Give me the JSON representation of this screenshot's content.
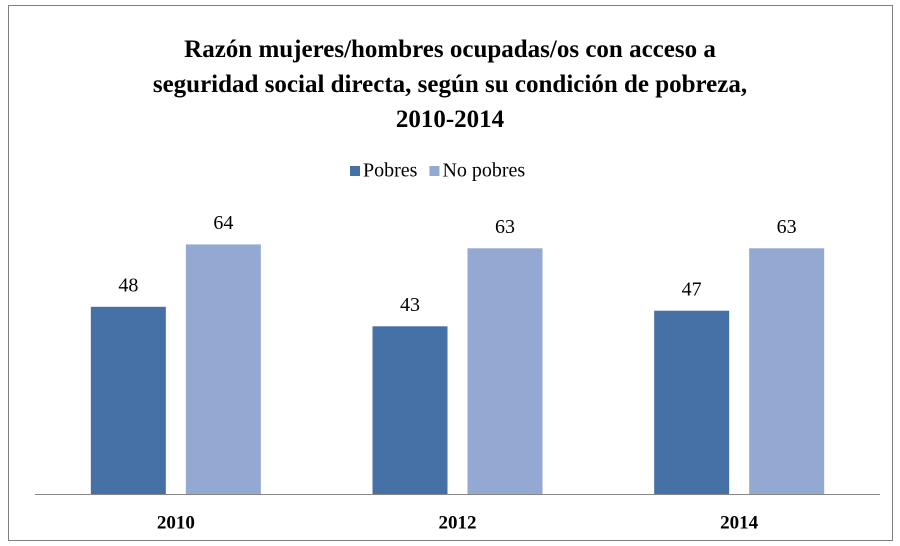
{
  "chart_data": {
    "type": "bar",
    "title": "Razón mujeres/hombres ocupadas/os con acceso a seguridad social directa, según su condición de pobreza, 2010-2014",
    "categories": [
      "2010",
      "2012",
      "2014"
    ],
    "series": [
      {
        "name": "Pobres",
        "color": "#4671a6",
        "values": [
          48,
          43,
          47
        ]
      },
      {
        "name": "No pobres",
        "color": "#93a9d1",
        "values": [
          64,
          63,
          63
        ]
      }
    ],
    "legend": "top"
  }
}
